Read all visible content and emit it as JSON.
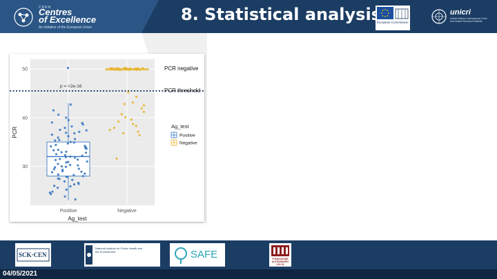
{
  "header": {
    "brand_small": "CBRN",
    "brand_line1": "Centres",
    "brand_line2": "of Excellence",
    "brand_tagline": "An initiative of the European Union",
    "title": "8. Statistical analysis II",
    "eu_logo_text": "European Commission",
    "unicri_name": "unicri",
    "unicri_desc": "United Nations Interregional Crime and Justice Research Institute",
    "color": "#1c3d63"
  },
  "chart_data": {
    "type": "scatter",
    "subtype": "boxplot-with-jitter",
    "title": "",
    "xlabel": "Ag_test",
    "ylabel": "PCR",
    "categories": [
      "Positive",
      "Negative"
    ],
    "ylim": [
      22,
      52
    ],
    "yticks": [
      30,
      40,
      50
    ],
    "grid": true,
    "legend": {
      "title": "Ag_test",
      "position": "right",
      "entries": [
        "Positive",
        "Negative"
      ]
    },
    "series": [
      {
        "name": "Positive",
        "color": "#3a78c2",
        "box": {
          "q1": 28,
          "median": 32,
          "q3": 35,
          "whisker_low": 23,
          "whisker_high": 43
        },
        "values": [
          50.2,
          42.7,
          41.5,
          40.6,
          40.0,
          39.5,
          39.0,
          38.6,
          38.2,
          37.9,
          37.5,
          37.1,
          36.8,
          36.5,
          36.2,
          35.9,
          35.6,
          35.3,
          35.0,
          34.7,
          34.4,
          34.1,
          33.8,
          33.6,
          33.3,
          33.0,
          32.8,
          32.5,
          32.3,
          32.0,
          31.8,
          31.5,
          31.3,
          31.0,
          30.8,
          30.5,
          30.3,
          30.0,
          29.8,
          29.5,
          29.3,
          29.0,
          28.8,
          28.5,
          28.3,
          28.0,
          27.8,
          27.5,
          27.2,
          26.9,
          26.6,
          26.3,
          26.0,
          25.6,
          25.2,
          24.8,
          24.3,
          23.8,
          23.2,
          34.9,
          33.9,
          32.9,
          31.9,
          30.9,
          29.9,
          28.9,
          27.9,
          36.9,
          35.4,
          33.4,
          31.4,
          29.4,
          27.4,
          26.4,
          38.9,
          37.4,
          34.2,
          32.2,
          30.2,
          28.2,
          25.9,
          24.6
        ]
      },
      {
        "name": "Negative",
        "color": "#e8b52c",
        "box": {
          "q1": 50,
          "median": 50,
          "q3": 50,
          "whisker_low": 49.6,
          "whisker_high": 50.4
        },
        "values": [
          50,
          50,
          50,
          50,
          50,
          50,
          50,
          50,
          50,
          50,
          50,
          50,
          50,
          50,
          50,
          50,
          50,
          50,
          50,
          50,
          50,
          50,
          50,
          50,
          50,
          50,
          50,
          50,
          50,
          50,
          50,
          50,
          50,
          50,
          50,
          50,
          50,
          50,
          50,
          50,
          45.2,
          44.3,
          43.1,
          42.8,
          42.5,
          41.9,
          41.2,
          40.7,
          40.1,
          39.6,
          39.2,
          38.7,
          38.3,
          37.9,
          37.5,
          37.1,
          36.8,
          36.4,
          31.6
        ]
      }
    ],
    "pvalue_label": "p = <2e-16",
    "threshold": {
      "value": 45.5,
      "label": "PCR threshold"
    },
    "negative_label": "PCR negative"
  },
  "footer": {
    "date": "04/05/2021",
    "partners": [
      "SCK·CEN",
      "National Institute for Public Health and the Environment",
      "SAFE",
      "FONDAZIONE ALESSANDRO VOLTA"
    ]
  }
}
